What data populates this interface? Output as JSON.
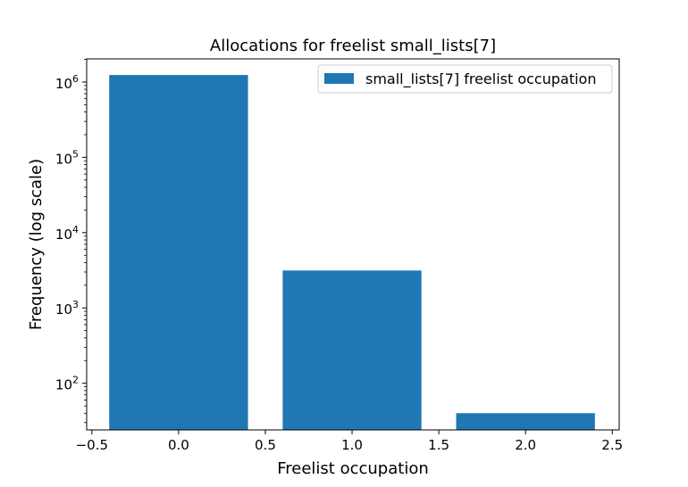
{
  "chart_data": {
    "type": "bar",
    "title": "Allocations for freelist small_lists[7]",
    "xlabel": "Freelist occupation",
    "ylabel": "Frequency (log scale)",
    "yscale": "log",
    "categories": [
      0,
      1,
      2
    ],
    "x": [
      0,
      1,
      2
    ],
    "bar_width": 0.8,
    "series": [
      {
        "name": "small_lists[7] freelist occupation",
        "values": [
          1240000,
          3140,
          40
        ],
        "color": "#1f77b4"
      }
    ],
    "xlim": [
      -0.53,
      2.54
    ],
    "ylim": [
      24,
      2030000
    ],
    "xticks": [
      -0.5,
      0.0,
      0.5,
      1.0,
      1.5,
      2.0,
      2.5
    ],
    "xtick_labels": [
      "−0.5",
      "0.0",
      "0.5",
      "1.0",
      "1.5",
      "2.0",
      "2.5"
    ],
    "yticks": [
      100,
      1000,
      10000,
      100000,
      1000000
    ],
    "ytick_labels": [
      {
        "base": "10",
        "exp": "2"
      },
      {
        "base": "10",
        "exp": "3"
      },
      {
        "base": "10",
        "exp": "4"
      },
      {
        "base": "10",
        "exp": "5"
      },
      {
        "base": "10",
        "exp": "6"
      }
    ],
    "grid": false,
    "legend": "top-right"
  }
}
